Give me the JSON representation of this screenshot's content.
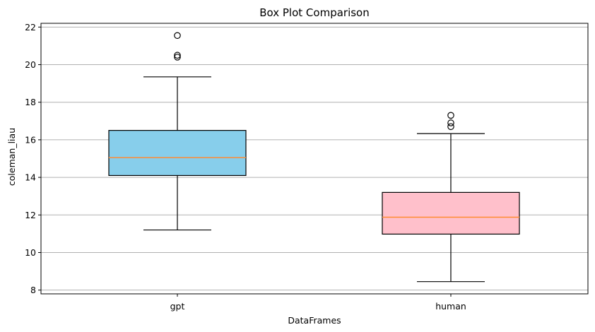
{
  "chart_data": {
    "type": "box",
    "title": "Box Plot Comparison",
    "xlabel": "DataFrames",
    "ylabel": "coleman_liau",
    "categories": [
      "gpt",
      "human"
    ],
    "ylim": [
      7.8,
      22.2
    ],
    "yticks": [
      8,
      10,
      12,
      14,
      16,
      18,
      20,
      22
    ],
    "grid": "y",
    "boxes": [
      {
        "name": "gpt",
        "whisker_low": 11.2,
        "q1": 14.1,
        "median": 15.05,
        "q3": 16.5,
        "whisker_high": 19.35,
        "fliers": [
          20.4,
          20.5,
          21.55
        ],
        "color": "#87CEEB"
      },
      {
        "name": "human",
        "whisker_low": 8.45,
        "q1": 10.98,
        "median": 11.88,
        "q3": 13.2,
        "whisker_high": 16.33,
        "fliers": [
          16.7,
          16.9,
          17.3
        ],
        "color": "#FFC0CB"
      }
    ],
    "colors": {
      "median": "#FF8C33",
      "grid": "#b0b0b0",
      "edge": "#000000"
    }
  }
}
